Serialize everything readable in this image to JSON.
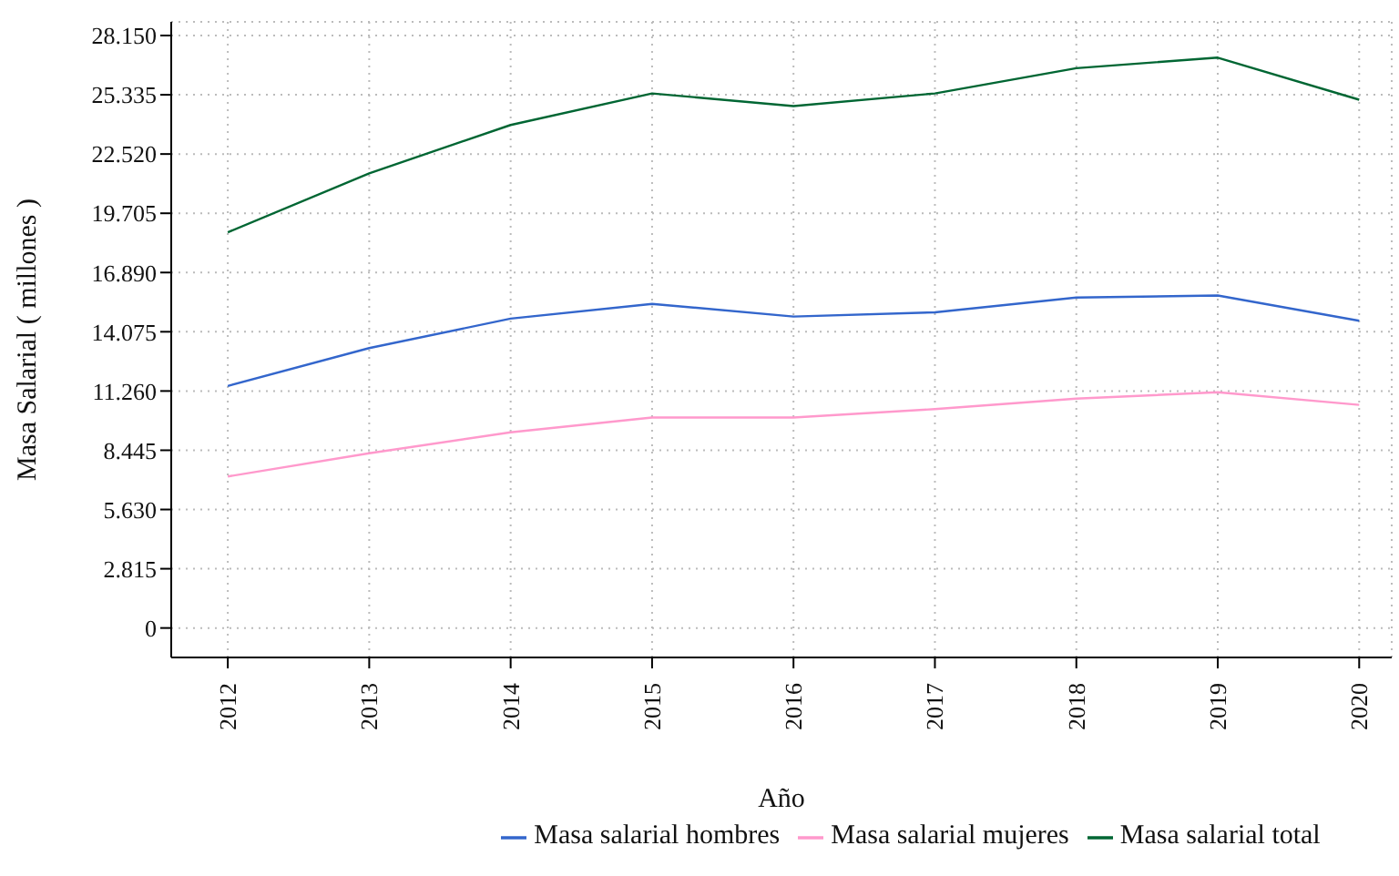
{
  "chart_data": {
    "type": "line",
    "xlabel": "Año",
    "ylabel": "Masa Salarial ( millones )",
    "x": [
      2012,
      2013,
      2014,
      2015,
      2016,
      2017,
      2018,
      2019,
      2020
    ],
    "series": [
      {
        "name": "Masa salarial hombres",
        "color": "#3366cc",
        "values": [
          11500,
          13300,
          14700,
          15400,
          14800,
          15000,
          15700,
          15800,
          14600
        ]
      },
      {
        "name": "Masa salarial mujeres",
        "color": "#ff99cc",
        "values": [
          7200,
          8300,
          9300,
          10000,
          10000,
          10400,
          10900,
          11200,
          10600
        ]
      },
      {
        "name": "Masa salarial total",
        "color": "#006633",
        "values": [
          18800,
          21600,
          23900,
          25400,
          24800,
          25400,
          26600,
          27100,
          25100
        ]
      }
    ],
    "xlim": [
      2011.6,
      2020.23
    ],
    "xticks": [
      2012,
      2013,
      2014,
      2015,
      2016,
      2017,
      2018,
      2019,
      2020
    ],
    "ylim": [
      -1400,
      28800
    ],
    "yticks": [
      0,
      {
        "value": 2815,
        "label": "2.815"
      },
      {
        "value": 5630,
        "label": "5.630"
      },
      {
        "value": 8445,
        "label": "8.445"
      },
      {
        "value": 11260,
        "label": "11.260"
      },
      {
        "value": 14075,
        "label": "14.075"
      },
      {
        "value": 16890,
        "label": "16.890"
      },
      {
        "value": 19705,
        "label": "19.705"
      },
      {
        "value": 22520,
        "label": "22.520"
      },
      {
        "value": 25335,
        "label": "25.335"
      },
      {
        "value": 28150,
        "label": "28.150"
      }
    ],
    "grid": true,
    "legend": "bottom",
    "marker": "none",
    "line_style": "solid"
  }
}
